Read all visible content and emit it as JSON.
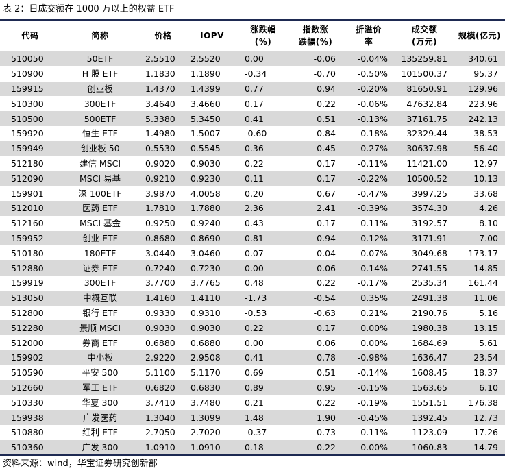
{
  "caption": "表 2：日成交额在 1000 万以上的权益 ETF",
  "headers": [
    [
      "代码"
    ],
    [
      "简称"
    ],
    [
      "价格"
    ],
    [
      "IOPV"
    ],
    [
      "涨跌幅",
      "(%)"
    ],
    [
      "指数涨",
      "跌幅(%)"
    ],
    [
      "折溢价",
      "率"
    ],
    [
      "成交额",
      "(万元)"
    ],
    [
      "规模(亿元)"
    ]
  ],
  "rows": [
    [
      "510050",
      "50ETF",
      "2.5510",
      "2.5520",
      "0.00",
      "-0.06",
      "-0.04%",
      "135259.81",
      "340.61"
    ],
    [
      "510900",
      "H 股 ETF",
      "1.1830",
      "1.1890",
      "-0.34",
      "-0.70",
      "-0.50%",
      "101500.37",
      "95.37"
    ],
    [
      "159915",
      "创业板",
      "1.4370",
      "1.4399",
      "0.77",
      "0.94",
      "-0.20%",
      "81650.91",
      "129.96"
    ],
    [
      "510300",
      "300ETF",
      "3.4640",
      "3.4660",
      "0.17",
      "0.22",
      "-0.06%",
      "47632.84",
      "223.96"
    ],
    [
      "510500",
      "500ETF",
      "5.3380",
      "5.3450",
      "0.41",
      "0.51",
      "-0.13%",
      "37161.75",
      "242.13"
    ],
    [
      "159920",
      "恒生 ETF",
      "1.4980",
      "1.5007",
      "-0.60",
      "-0.84",
      "-0.18%",
      "32329.44",
      "38.53"
    ],
    [
      "159949",
      "创业板 50",
      "0.5530",
      "0.5545",
      "0.36",
      "0.45",
      "-0.27%",
      "30637.98",
      "56.40"
    ],
    [
      "512180",
      "建信 MSCI",
      "0.9020",
      "0.9030",
      "0.22",
      "0.17",
      "-0.11%",
      "11421.00",
      "12.97"
    ],
    [
      "512090",
      "MSCI 易基",
      "0.9210",
      "0.9230",
      "0.11",
      "0.17",
      "-0.22%",
      "10500.52",
      "10.13"
    ],
    [
      "159901",
      "深 100ETF",
      "3.9870",
      "4.0058",
      "0.20",
      "0.67",
      "-0.47%",
      "3997.25",
      "33.68"
    ],
    [
      "512010",
      "医药 ETF",
      "1.7810",
      "1.7880",
      "2.36",
      "2.41",
      "-0.39%",
      "3574.30",
      "4.26"
    ],
    [
      "512160",
      "MSCI 基金",
      "0.9250",
      "0.9240",
      "0.43",
      "0.17",
      "0.11%",
      "3192.57",
      "8.10"
    ],
    [
      "159952",
      "创业 ETF",
      "0.8680",
      "0.8690",
      "0.81",
      "0.94",
      "-0.12%",
      "3171.91",
      "7.00"
    ],
    [
      "510180",
      "180ETF",
      "3.0440",
      "3.0460",
      "0.07",
      "0.04",
      "-0.07%",
      "3049.68",
      "173.17"
    ],
    [
      "512880",
      "证券 ETF",
      "0.7240",
      "0.7230",
      "0.00",
      "0.06",
      "0.14%",
      "2741.55",
      "14.85"
    ],
    [
      "159919",
      "300ETF",
      "3.7700",
      "3.7765",
      "0.48",
      "0.22",
      "-0.17%",
      "2535.34",
      "161.44"
    ],
    [
      "513050",
      "中概互联",
      "1.4160",
      "1.4110",
      "-1.73",
      "-0.54",
      "0.35%",
      "2491.38",
      "11.06"
    ],
    [
      "512800",
      "银行 ETF",
      "0.9330",
      "0.9310",
      "-0.53",
      "-0.63",
      "0.21%",
      "2190.76",
      "5.16"
    ],
    [
      "512280",
      "景顺 MSCI",
      "0.9030",
      "0.9030",
      "0.22",
      "0.17",
      "0.00%",
      "1980.38",
      "13.15"
    ],
    [
      "512000",
      "券商 ETF",
      "0.6880",
      "0.6880",
      "0.00",
      "0.06",
      "0.00%",
      "1684.69",
      "5.61"
    ],
    [
      "159902",
      "中小板",
      "2.9220",
      "2.9508",
      "0.41",
      "0.78",
      "-0.98%",
      "1636.47",
      "23.54"
    ],
    [
      "510590",
      "平安 500",
      "5.1100",
      "5.1170",
      "0.69",
      "0.51",
      "-0.14%",
      "1608.45",
      "18.37"
    ],
    [
      "512660",
      "军工 ETF",
      "0.6820",
      "0.6830",
      "0.89",
      "0.95",
      "-0.15%",
      "1563.65",
      "6.10"
    ],
    [
      "510330",
      "华夏 300",
      "3.7410",
      "3.7480",
      "0.21",
      "0.22",
      "-0.19%",
      "1551.51",
      "176.38"
    ],
    [
      "159938",
      "广发医药",
      "1.3040",
      "1.3099",
      "1.48",
      "1.90",
      "-0.45%",
      "1392.45",
      "12.73"
    ],
    [
      "510880",
      "红利 ETF",
      "2.7050",
      "2.7020",
      "-0.37",
      "-0.73",
      "0.11%",
      "1123.09",
      "17.26"
    ],
    [
      "510360",
      "广发 300",
      "1.0910",
      "1.0910",
      "0.18",
      "0.22",
      "0.00%",
      "1060.83",
      "14.79"
    ]
  ],
  "source": "资料来源：wind，华宝证券研究创新部"
}
